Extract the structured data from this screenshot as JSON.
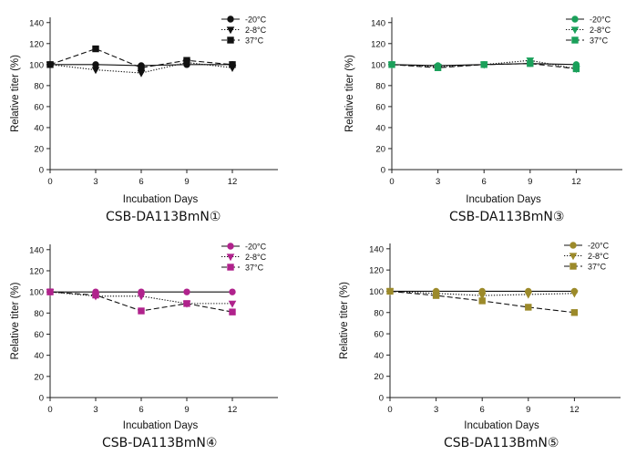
{
  "chart_data": [
    {
      "type": "line",
      "caption": "CSB-DA113BmN①",
      "xlabel": "Incubation Days",
      "ylabel": "Relative titer (%)",
      "xlim": [
        0,
        15
      ],
      "ylim": [
        0,
        145
      ],
      "xticks": [
        0,
        3,
        6,
        9,
        12
      ],
      "yticks": [
        0,
        20,
        40,
        60,
        80,
        100,
        120,
        140
      ],
      "x": [
        0,
        3,
        6,
        9,
        12
      ],
      "legend": "top-right",
      "series": [
        {
          "name": "-20°C",
          "values": [
            100,
            100,
            99,
            100,
            100
          ],
          "color": "#111111",
          "marker": "circle",
          "dash": "solid"
        },
        {
          "name": "2-8°C",
          "values": [
            100,
            95,
            92,
            102,
            97
          ],
          "color": "#111111",
          "marker": "triangle-down",
          "dash": "dotted"
        },
        {
          "name": "37°C",
          "values": [
            100,
            115,
            97,
            104,
            100
          ],
          "color": "#111111",
          "marker": "square",
          "dash": "dashed"
        }
      ]
    },
    {
      "type": "line",
      "caption": "CSB-DA113BmN③",
      "xlabel": "Incubation Days",
      "ylabel": "Relative titer (%)",
      "xlim": [
        0,
        15
      ],
      "ylim": [
        0,
        145
      ],
      "xticks": [
        0,
        3,
        6,
        9,
        12
      ],
      "yticks": [
        0,
        20,
        40,
        60,
        80,
        100,
        120,
        140
      ],
      "x": [
        0,
        3,
        6,
        9,
        12
      ],
      "legend": "top-right",
      "series": [
        {
          "name": "-20°C",
          "values": [
            100,
            99,
            100,
            101,
            100
          ],
          "color": "#1aa05a",
          "marker": "circle",
          "dash": "solid"
        },
        {
          "name": "2-8°C",
          "values": [
            100,
            98,
            100,
            104,
            96
          ],
          "color": "#1aa05a",
          "marker": "triangle-down",
          "dash": "dotted"
        },
        {
          "name": "37°C",
          "values": [
            100,
            97,
            100,
            101,
            96
          ],
          "color": "#1aa05a",
          "marker": "square",
          "dash": "dashed"
        }
      ]
    },
    {
      "type": "line",
      "caption": "CSB-DA113BmN④",
      "xlabel": "Incubation Days",
      "ylabel": "Relative titer (%)",
      "xlim": [
        0,
        15
      ],
      "ylim": [
        0,
        145
      ],
      "xticks": [
        0,
        3,
        6,
        9,
        12
      ],
      "yticks": [
        0,
        20,
        40,
        60,
        80,
        100,
        120,
        140
      ],
      "x": [
        0,
        3,
        6,
        9,
        12
      ],
      "legend": "top-right",
      "series": [
        {
          "name": "-20°C",
          "values": [
            100,
            100,
            100,
            100,
            100
          ],
          "color": "#b0228c",
          "marker": "circle",
          "dash": "solid"
        },
        {
          "name": "2-8°C",
          "values": [
            100,
            96,
            96,
            89,
            89
          ],
          "color": "#b0228c",
          "marker": "triangle-down",
          "dash": "dotted"
        },
        {
          "name": "37°C",
          "values": [
            100,
            97,
            82,
            89,
            81
          ],
          "color": "#b0228c",
          "marker": "square",
          "dash": "dashed"
        }
      ]
    },
    {
      "type": "line",
      "caption": "CSB-DA113BmN⑤",
      "xlabel": "Incubation Days",
      "ylabel": "Relative titer (%)",
      "xlim": [
        0,
        15
      ],
      "ylim": [
        0,
        145
      ],
      "xticks": [
        0,
        3,
        6,
        9,
        12
      ],
      "yticks": [
        0,
        20,
        40,
        60,
        80,
        100,
        120,
        140
      ],
      "x": [
        0,
        3,
        6,
        9,
        12
      ],
      "legend": "top-right",
      "series": [
        {
          "name": "-20°C",
          "values": [
            100,
            100,
            100,
            100,
            100
          ],
          "color": "#9c8a2a",
          "marker": "circle",
          "dash": "solid"
        },
        {
          "name": "2-8°C",
          "values": [
            100,
            98,
            96,
            97,
            98
          ],
          "color": "#9c8a2a",
          "marker": "triangle-down",
          "dash": "dotted"
        },
        {
          "name": "37°C",
          "values": [
            100,
            96,
            91,
            85,
            80
          ],
          "color": "#9c8a2a",
          "marker": "square",
          "dash": "dashed"
        }
      ]
    }
  ]
}
